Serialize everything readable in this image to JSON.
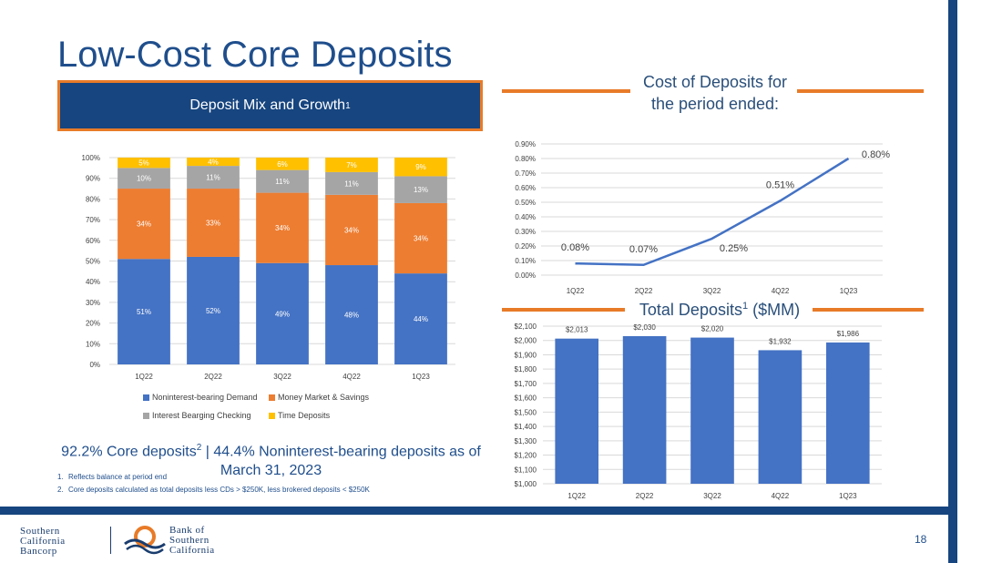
{
  "page_title": "Low-Cost Core Deposits",
  "mix_header": {
    "text": "Deposit Mix and Growth",
    "sup": "1"
  },
  "cost_title": {
    "line1": "Cost of Deposits for",
    "line2": "the period ended:"
  },
  "total_title": {
    "text": "Total Deposits",
    "sup": "1",
    "suffix": " ($MM)"
  },
  "core_text": {
    "part1": "92.2% Core deposits",
    "sup": "2",
    "part2": " | 44.4% Noninterest-bearing deposits as of March 31, 2023"
  },
  "footnotes": [
    {
      "num": "1.",
      "text": "Reflects balance at period end"
    },
    {
      "num": "2.",
      "text": "Core deposits calculated as total deposits less CDs > $250K, less brokered deposits < $250K"
    }
  ],
  "page_number": "18",
  "logo_left": {
    "line1": "Southern",
    "line2": "California",
    "line3": "Bancorp"
  },
  "logo_right": {
    "line1": "Bank of",
    "line2": "Southern",
    "line3": "California"
  },
  "colors": {
    "navy": "#17457f",
    "orange": "#e87b28",
    "blue": "#4472c4",
    "gray": "#a5a5a5",
    "gold": "#ffc000"
  },
  "chart_data": [
    {
      "type": "bar",
      "stacked": true,
      "categories": [
        "1Q22",
        "2Q22",
        "3Q22",
        "4Q22",
        "1Q23"
      ],
      "series": [
        {
          "name": "Noninterest-bearing Demand",
          "color": "#4472c4",
          "values": [
            51,
            52,
            49,
            48,
            44
          ]
        },
        {
          "name": "Money Market & Savings",
          "color": "#ed7d31",
          "values": [
            34,
            33,
            34,
            34,
            34
          ]
        },
        {
          "name": "Interest Bearging Checking",
          "color": "#a5a5a5",
          "values": [
            10,
            11,
            11,
            11,
            13
          ]
        },
        {
          "name": "Time Deposits",
          "color": "#ffc000",
          "values": [
            5,
            4,
            6,
            7,
            9
          ]
        }
      ],
      "yticks": [
        "0%",
        "10%",
        "20%",
        "30%",
        "40%",
        "50%",
        "60%",
        "70%",
        "80%",
        "90%",
        "100%"
      ],
      "ylim": [
        0,
        100
      ],
      "legend": "bottom",
      "grid": true
    },
    {
      "type": "line",
      "categories": [
        "1Q22",
        "2Q22",
        "3Q22",
        "4Q22",
        "1Q23"
      ],
      "values": [
        0.08,
        0.07,
        0.25,
        0.51,
        0.8
      ],
      "labels": [
        "0.08%",
        "0.07%",
        "0.25%",
        "0.51%",
        "0.80%"
      ],
      "color": "#4472c4",
      "yticks": [
        "0.00%",
        "0.10%",
        "0.20%",
        "0.30%",
        "0.40%",
        "0.50%",
        "0.60%",
        "0.70%",
        "0.80%",
        "0.90%"
      ],
      "ylim": [
        0,
        0.9
      ],
      "grid": true
    },
    {
      "type": "bar",
      "categories": [
        "1Q22",
        "2Q22",
        "3Q22",
        "4Q22",
        "1Q23"
      ],
      "values": [
        2013,
        2030,
        2020,
        1932,
        1986
      ],
      "labels": [
        "$2,013",
        "$2,030",
        "$2,020",
        "$1,932",
        "$1,986"
      ],
      "color": "#4472c4",
      "yticks": [
        "$1,000",
        "$1,100",
        "$1,200",
        "$1,300",
        "$1,400",
        "$1,500",
        "$1,600",
        "$1,700",
        "$1,800",
        "$1,900",
        "$2,000",
        "$2,100"
      ],
      "ylim": [
        1000,
        2100
      ],
      "grid": true
    }
  ]
}
